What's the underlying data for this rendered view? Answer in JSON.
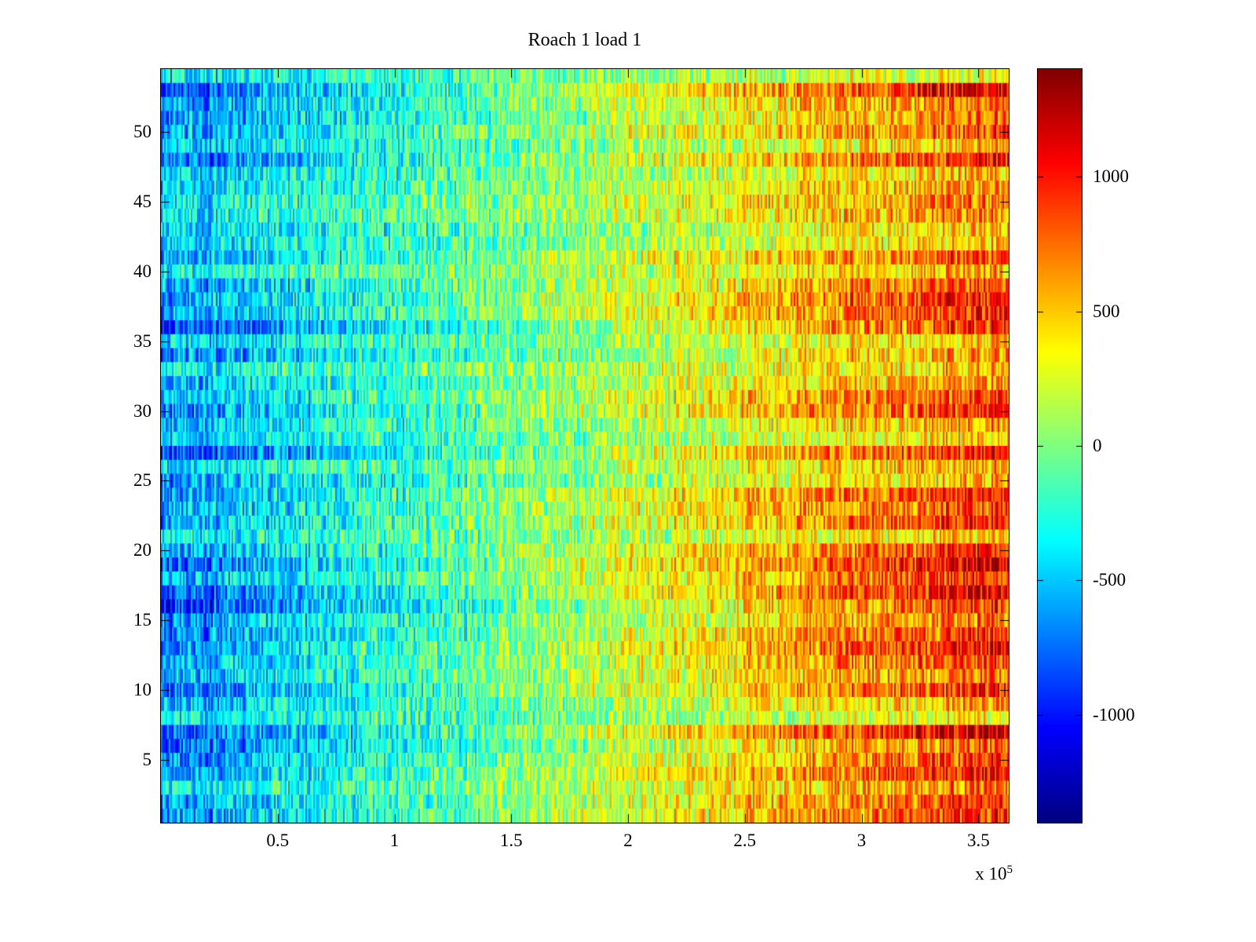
{
  "chart_data": {
    "type": "heatmap",
    "title": "Roach 1 load 1",
    "xlabel": "",
    "ylabel": "",
    "colormap": "jet",
    "xlim": [
      0,
      363000
    ],
    "ylim": [
      0.5,
      54.5
    ],
    "clim": [
      -1400,
      1400
    ],
    "x_ticks": [
      50000,
      100000,
      150000,
      200000,
      250000,
      300000,
      350000
    ],
    "x_tick_labels": [
      "0.5",
      "1",
      "1.5",
      "2",
      "2.5",
      "3",
      "3.5"
    ],
    "x_exponent_base": "x 10",
    "x_exponent_power": "5",
    "y_ticks": [
      5,
      10,
      15,
      20,
      25,
      30,
      35,
      40,
      45,
      50
    ],
    "y_tick_labels": [
      "5",
      "10",
      "15",
      "20",
      "25",
      "30",
      "35",
      "40",
      "45",
      "50"
    ],
    "colorbar_ticks": [
      1000,
      500,
      0,
      -500,
      -1000
    ],
    "colorbar_tick_labels": [
      "1000",
      "500",
      "0",
      "-500",
      "-1000"
    ],
    "rows": 54,
    "grid": false,
    "legend": "colorbar-right",
    "column_trend_means": [
      -650,
      -500,
      -340,
      -180,
      -20,
      140,
      320,
      520,
      700,
      820
    ],
    "description": "Noisy signal image: values rise roughly linearly from about -650 at x=0 (blue) to about +820 at x=3.6e5 (red-orange); distinct horizontal row bands with differing intensity; speckle noise of roughly +/-360 throughout.",
    "generation": {
      "seed": 7,
      "rows": 54,
      "cols": 540,
      "left_mean": -640,
      "right_mean": 820,
      "noise": 360,
      "col_noise": 110,
      "row_gain_min": 0.55,
      "row_gain_max": 1.45,
      "row_bias": 90
    }
  }
}
